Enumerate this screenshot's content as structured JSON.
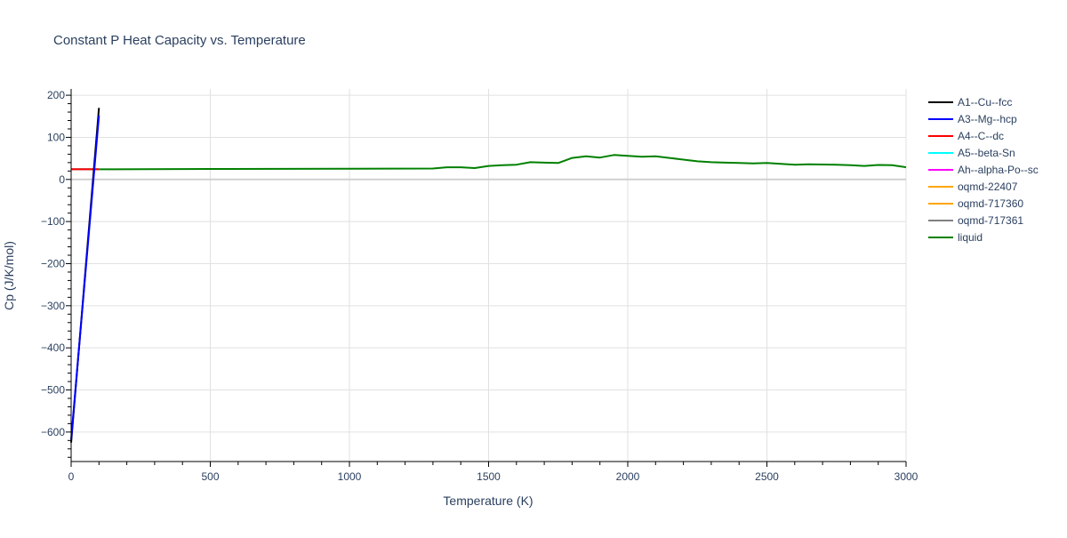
{
  "chart_data": {
    "type": "line",
    "title": "Constant P Heat Capacity vs. Temperature",
    "xlabel": "Temperature (K)",
    "ylabel": "Cp (J/K/mol)",
    "xlim": [
      0,
      3000
    ],
    "ylim": [
      -670,
      215
    ],
    "xticks": [
      0,
      500,
      1000,
      1500,
      2000,
      2500,
      3000
    ],
    "xtick_labels": [
      "0",
      "500",
      "1000",
      "1500",
      "2000",
      "2500",
      "3000"
    ],
    "yticks": [
      200,
      100,
      0,
      -100,
      -200,
      -300,
      -400,
      -500,
      -600
    ],
    "ytick_labels": [
      "200",
      "100",
      "0",
      "−100",
      "−200",
      "−300",
      "−400",
      "−500",
      "−600"
    ],
    "grid": true,
    "legend_position": "right",
    "series": [
      {
        "name": "A1--Cu--fcc",
        "color": "#000000",
        "x": [
          0,
          100
        ],
        "y": [
          -625,
          170
        ]
      },
      {
        "name": "A3--Mg--hcp",
        "color": "#0000ff",
        "x": [
          0,
          100
        ],
        "y": [
          -618,
          152
        ]
      },
      {
        "name": "A4--C--dc",
        "color": "#ff0000",
        "x": [
          0,
          100
        ],
        "y": [
          24,
          24
        ]
      },
      {
        "name": "A5--beta-Sn",
        "color": "#00ffff",
        "x": [
          0,
          100
        ],
        "y": [
          24,
          24
        ]
      },
      {
        "name": "Ah--alpha-Po--sc",
        "color": "#ff00ff",
        "x": [
          0,
          100
        ],
        "y": [
          24,
          24
        ]
      },
      {
        "name": "oqmd-22407",
        "color": "#ffa500",
        "x": [
          0,
          100
        ],
        "y": [
          24,
          24
        ]
      },
      {
        "name": "oqmd-717360",
        "color": "#ffa500",
        "x": [
          0,
          100
        ],
        "y": [
          24,
          24
        ]
      },
      {
        "name": "oqmd-717361",
        "color": "#808080",
        "x": [
          0,
          100
        ],
        "y": [
          24,
          24
        ]
      },
      {
        "name": "liquid",
        "color": "#008000",
        "x": [
          0,
          100,
          500,
          1000,
          1300,
          1350,
          1400,
          1450,
          1500,
          1550,
          1600,
          1650,
          1700,
          1750,
          1800,
          1850,
          1900,
          1950,
          2000,
          2050,
          2100,
          2150,
          2200,
          2250,
          2300,
          2350,
          2400,
          2450,
          2500,
          2550,
          2600,
          2650,
          2700,
          2750,
          2800,
          2850,
          2900,
          2950,
          3000
        ],
        "y": [
          24,
          24,
          25,
          25.5,
          26,
          29,
          29,
          27,
          32,
          34,
          35,
          41,
          40,
          39,
          51,
          55,
          52,
          58,
          56,
          54,
          55,
          51,
          47,
          43,
          41,
          40,
          39,
          38,
          39,
          37,
          35,
          36,
          35.5,
          35,
          34,
          32,
          34.5,
          34,
          29
        ]
      }
    ]
  }
}
